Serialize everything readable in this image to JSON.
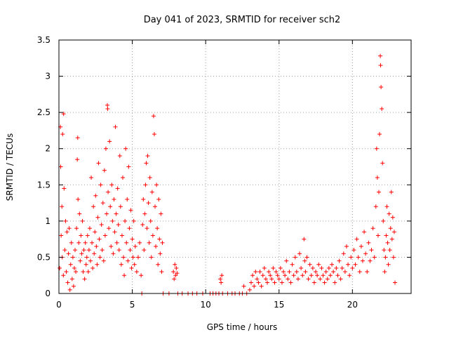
{
  "chart_data": {
    "type": "scatter",
    "title": "Day 041 of 2023, SRMTID for receiver sch2",
    "xlabel": "GPS time / hours",
    "ylabel": "SRMTID / TECUs",
    "xlim": [
      0,
      24
    ],
    "ylim": [
      0,
      3.5
    ],
    "xticks": [
      0,
      5,
      10,
      15,
      20
    ],
    "yticks": [
      0,
      0.5,
      1,
      1.5,
      2,
      2.5,
      3,
      3.5
    ],
    "xtick_labels": [
      "0",
      "5",
      "10",
      "15",
      "20"
    ],
    "ytick_labels": [
      "0",
      "0.5",
      "1",
      "1.5",
      "2",
      "2.5",
      "3",
      "3.5"
    ],
    "grid": true,
    "marker": "+",
    "color": "#ff0000",
    "series": [
      {
        "name": "sch2",
        "points": [
          [
            0.05,
            0.35
          ],
          [
            0.1,
            2.3
          ],
          [
            0.12,
            1.75
          ],
          [
            0.15,
            0.8
          ],
          [
            0.2,
            1.2
          ],
          [
            0.22,
            0.5
          ],
          [
            0.25,
            2.2
          ],
          [
            0.3,
            0.25
          ],
          [
            0.32,
            2.48
          ],
          [
            0.35,
            1.45
          ],
          [
            0.4,
            0.6
          ],
          [
            0.45,
            1.0
          ],
          [
            0.5,
            0.3
          ],
          [
            0.55,
            0.85
          ],
          [
            0.6,
            0.15
          ],
          [
            0.65,
            0.55
          ],
          [
            0.7,
            0.9
          ],
          [
            0.75,
            0.05
          ],
          [
            0.8,
            0.4
          ],
          [
            0.85,
            0.7
          ],
          [
            0.9,
            0.2
          ],
          [
            0.95,
            0.5
          ],
          [
            1.0,
            0.1
          ],
          [
            1.05,
            0.35
          ],
          [
            1.1,
            0.6
          ],
          [
            1.15,
            0.3
          ],
          [
            1.2,
            0.9
          ],
          [
            1.25,
            1.85
          ],
          [
            1.28,
            2.15
          ],
          [
            1.3,
            1.3
          ],
          [
            1.35,
            0.7
          ],
          [
            1.4,
            1.1
          ],
          [
            1.45,
            0.45
          ],
          [
            1.5,
            0.8
          ],
          [
            1.55,
            0.55
          ],
          [
            1.6,
            1.0
          ],
          [
            1.65,
            0.3
          ],
          [
            1.7,
            0.6
          ],
          [
            1.75,
            0.2
          ],
          [
            1.8,
            0.7
          ],
          [
            1.85,
            0.4
          ],
          [
            1.9,
            0.5
          ],
          [
            1.95,
            0.8
          ],
          [
            2.0,
            0.3
          ],
          [
            2.05,
            0.6
          ],
          [
            2.1,
            0.9
          ],
          [
            2.15,
            0.45
          ],
          [
            2.2,
            1.6
          ],
          [
            2.25,
            0.7
          ],
          [
            2.3,
            0.35
          ],
          [
            2.35,
            1.2
          ],
          [
            2.4,
            0.55
          ],
          [
            2.45,
            0.85
          ],
          [
            2.5,
            1.35
          ],
          [
            2.55,
            0.65
          ],
          [
            2.6,
            0.4
          ],
          [
            2.65,
            1.05
          ],
          [
            2.7,
            1.8
          ],
          [
            2.75,
            0.75
          ],
          [
            2.8,
            0.5
          ],
          [
            2.85,
            1.5
          ],
          [
            2.9,
            0.95
          ],
          [
            2.95,
            0.6
          ],
          [
            3.0,
            1.25
          ],
          [
            3.05,
            0.45
          ],
          [
            3.1,
            1.7
          ],
          [
            3.15,
            0.8
          ],
          [
            3.2,
            2.0
          ],
          [
            3.25,
            1.1
          ],
          [
            3.3,
            2.6
          ],
          [
            3.32,
            2.55
          ],
          [
            3.35,
            1.4
          ],
          [
            3.4,
            0.9
          ],
          [
            3.45,
            2.1
          ],
          [
            3.5,
            1.2
          ],
          [
            3.55,
            0.65
          ],
          [
            3.6,
            1.5
          ],
          [
            3.65,
            1.0
          ],
          [
            3.7,
            0.55
          ],
          [
            3.75,
            1.3
          ],
          [
            3.8,
            0.85
          ],
          [
            3.85,
            2.3
          ],
          [
            3.9,
            1.1
          ],
          [
            3.95,
            0.7
          ],
          [
            4.0,
            1.45
          ],
          [
            4.05,
            0.95
          ],
          [
            4.1,
            0.6
          ],
          [
            4.15,
            1.9
          ],
          [
            4.2,
            1.2
          ],
          [
            4.25,
            0.4
          ],
          [
            4.3,
            0.8
          ],
          [
            4.35,
            1.6
          ],
          [
            4.4,
            0.5
          ],
          [
            4.45,
            0.25
          ],
          [
            4.5,
            1.0
          ],
          [
            4.55,
            2.0
          ],
          [
            4.6,
            0.7
          ],
          [
            4.65,
            1.3
          ],
          [
            4.7,
            0.45
          ],
          [
            4.75,
            1.75
          ],
          [
            4.8,
            0.9
          ],
          [
            4.85,
            0.6
          ],
          [
            4.9,
            1.15
          ],
          [
            4.95,
            0.35
          ],
          [
            5.0,
            0.75
          ],
          [
            5.05,
            0.5
          ],
          [
            5.1,
            1.0
          ],
          [
            5.15,
            0.4
          ],
          [
            5.2,
            0.65
          ],
          [
            5.3,
            0.3
          ],
          [
            5.4,
            0.5
          ],
          [
            5.5,
            0.7
          ],
          [
            5.6,
            0.25
          ],
          [
            5.65,
            0.0
          ],
          [
            5.7,
            0.95
          ],
          [
            5.75,
            1.3
          ],
          [
            5.8,
            0.6
          ],
          [
            5.85,
            1.1
          ],
          [
            5.9,
            1.5
          ],
          [
            5.95,
            1.8
          ],
          [
            6.0,
            0.9
          ],
          [
            6.05,
            1.9
          ],
          [
            6.1,
            1.25
          ],
          [
            6.15,
            0.7
          ],
          [
            6.2,
            1.6
          ],
          [
            6.25,
            1.0
          ],
          [
            6.3,
            0.5
          ],
          [
            6.35,
            1.4
          ],
          [
            6.4,
            0.8
          ],
          [
            6.45,
            2.45
          ],
          [
            6.5,
            2.2
          ],
          [
            6.55,
            1.2
          ],
          [
            6.6,
            0.65
          ],
          [
            6.65,
            1.5
          ],
          [
            6.7,
            0.9
          ],
          [
            6.75,
            0.4
          ],
          [
            6.8,
            1.3
          ],
          [
            6.85,
            0.75
          ],
          [
            6.9,
            0.55
          ],
          [
            6.95,
            1.1
          ],
          [
            7.0,
            0.3
          ],
          [
            7.05,
            0.7
          ],
          [
            7.1,
            0.0
          ],
          [
            7.5,
            0.0
          ],
          [
            7.8,
            0.3
          ],
          [
            7.85,
            0.2
          ],
          [
            7.9,
            0.4
          ],
          [
            7.95,
            0.25
          ],
          [
            8.0,
            0.35
          ],
          [
            8.05,
            0.28
          ],
          [
            8.1,
            0.0
          ],
          [
            8.4,
            0.0
          ],
          [
            8.8,
            0.0
          ],
          [
            9.1,
            0.0
          ],
          [
            9.4,
            0.0
          ],
          [
            9.8,
            0.0
          ],
          [
            10.3,
            0.0
          ],
          [
            10.5,
            0.0
          ],
          [
            10.7,
            0.0
          ],
          [
            10.9,
            0.0
          ],
          [
            11.0,
            0.2
          ],
          [
            11.05,
            0.15
          ],
          [
            11.1,
            0.25
          ],
          [
            11.15,
            0.0
          ],
          [
            11.5,
            0.0
          ],
          [
            11.8,
            0.0
          ],
          [
            12.0,
            0.0
          ],
          [
            12.3,
            0.0
          ],
          [
            12.5,
            0.0
          ],
          [
            12.6,
            0.1
          ],
          [
            12.8,
            0.0
          ],
          [
            13.0,
            0.05
          ],
          [
            13.1,
            0.15
          ],
          [
            13.2,
            0.25
          ],
          [
            13.3,
            0.1
          ],
          [
            13.4,
            0.3
          ],
          [
            13.5,
            0.2
          ],
          [
            13.6,
            0.15
          ],
          [
            13.7,
            0.3
          ],
          [
            13.8,
            0.1
          ],
          [
            13.9,
            0.25
          ],
          [
            14.0,
            0.35
          ],
          [
            14.1,
            0.2
          ],
          [
            14.2,
            0.15
          ],
          [
            14.3,
            0.3
          ],
          [
            14.4,
            0.25
          ],
          [
            14.5,
            0.2
          ],
          [
            14.6,
            0.35
          ],
          [
            14.7,
            0.15
          ],
          [
            14.8,
            0.3
          ],
          [
            14.9,
            0.25
          ],
          [
            15.0,
            0.2
          ],
          [
            15.1,
            0.35
          ],
          [
            15.2,
            0.15
          ],
          [
            15.3,
            0.3
          ],
          [
            15.4,
            0.25
          ],
          [
            15.5,
            0.45
          ],
          [
            15.6,
            0.2
          ],
          [
            15.7,
            0.3
          ],
          [
            15.8,
            0.15
          ],
          [
            15.9,
            0.4
          ],
          [
            16.0,
            0.25
          ],
          [
            16.1,
            0.5
          ],
          [
            16.2,
            0.3
          ],
          [
            16.3,
            0.2
          ],
          [
            16.4,
            0.55
          ],
          [
            16.5,
            0.35
          ],
          [
            16.6,
            0.25
          ],
          [
            16.7,
            0.75
          ],
          [
            16.75,
            0.45
          ],
          [
            16.8,
            0.3
          ],
          [
            16.9,
            0.5
          ],
          [
            17.0,
            0.2
          ],
          [
            17.1,
            0.4
          ],
          [
            17.2,
            0.25
          ],
          [
            17.3,
            0.35
          ],
          [
            17.4,
            0.15
          ],
          [
            17.5,
            0.3
          ],
          [
            17.6,
            0.25
          ],
          [
            17.7,
            0.4
          ],
          [
            17.8,
            0.2
          ],
          [
            17.9,
            0.35
          ],
          [
            18.0,
            0.25
          ],
          [
            18.1,
            0.15
          ],
          [
            18.2,
            0.3
          ],
          [
            18.3,
            0.2
          ],
          [
            18.4,
            0.35
          ],
          [
            18.5,
            0.25
          ],
          [
            18.6,
            0.4
          ],
          [
            18.7,
            0.3
          ],
          [
            18.8,
            0.15
          ],
          [
            18.9,
            0.35
          ],
          [
            19.0,
            0.25
          ],
          [
            19.1,
            0.45
          ],
          [
            19.2,
            0.2
          ],
          [
            19.3,
            0.35
          ],
          [
            19.4,
            0.55
          ],
          [
            19.5,
            0.3
          ],
          [
            19.6,
            0.65
          ],
          [
            19.7,
            0.4
          ],
          [
            19.8,
            0.25
          ],
          [
            19.9,
            0.5
          ],
          [
            20.0,
            0.35
          ],
          [
            20.1,
            0.6
          ],
          [
            20.2,
            0.4
          ],
          [
            20.3,
            0.75
          ],
          [
            20.4,
            0.5
          ],
          [
            20.5,
            0.3
          ],
          [
            20.6,
            0.65
          ],
          [
            20.7,
            0.45
          ],
          [
            20.8,
            0.85
          ],
          [
            20.9,
            0.55
          ],
          [
            21.0,
            0.3
          ],
          [
            21.1,
            0.7
          ],
          [
            21.2,
            0.45
          ],
          [
            21.3,
            0.6
          ],
          [
            21.4,
            0.9
          ],
          [
            21.5,
            0.5
          ],
          [
            21.6,
            1.2
          ],
          [
            21.65,
            2.0
          ],
          [
            21.7,
            1.6
          ],
          [
            21.75,
            0.8
          ],
          [
            21.8,
            1.4
          ],
          [
            21.85,
            2.2
          ],
          [
            21.9,
            3.28
          ],
          [
            21.92,
            3.15
          ],
          [
            21.95,
            2.85
          ],
          [
            22.0,
            2.55
          ],
          [
            22.05,
            1.8
          ],
          [
            22.1,
            1.0
          ],
          [
            22.15,
            0.6
          ],
          [
            22.2,
            0.3
          ],
          [
            22.25,
            0.5
          ],
          [
            22.3,
            0.8
          ],
          [
            22.35,
            1.2
          ],
          [
            22.4,
            0.7
          ],
          [
            22.45,
            0.4
          ],
          [
            22.5,
            1.1
          ],
          [
            22.55,
            0.6
          ],
          [
            22.6,
            0.9
          ],
          [
            22.65,
            1.4
          ],
          [
            22.7,
            0.75
          ],
          [
            22.75,
            1.05
          ],
          [
            22.8,
            0.5
          ],
          [
            22.85,
            0.85
          ],
          [
            22.9,
            0.15
          ]
        ]
      }
    ]
  }
}
